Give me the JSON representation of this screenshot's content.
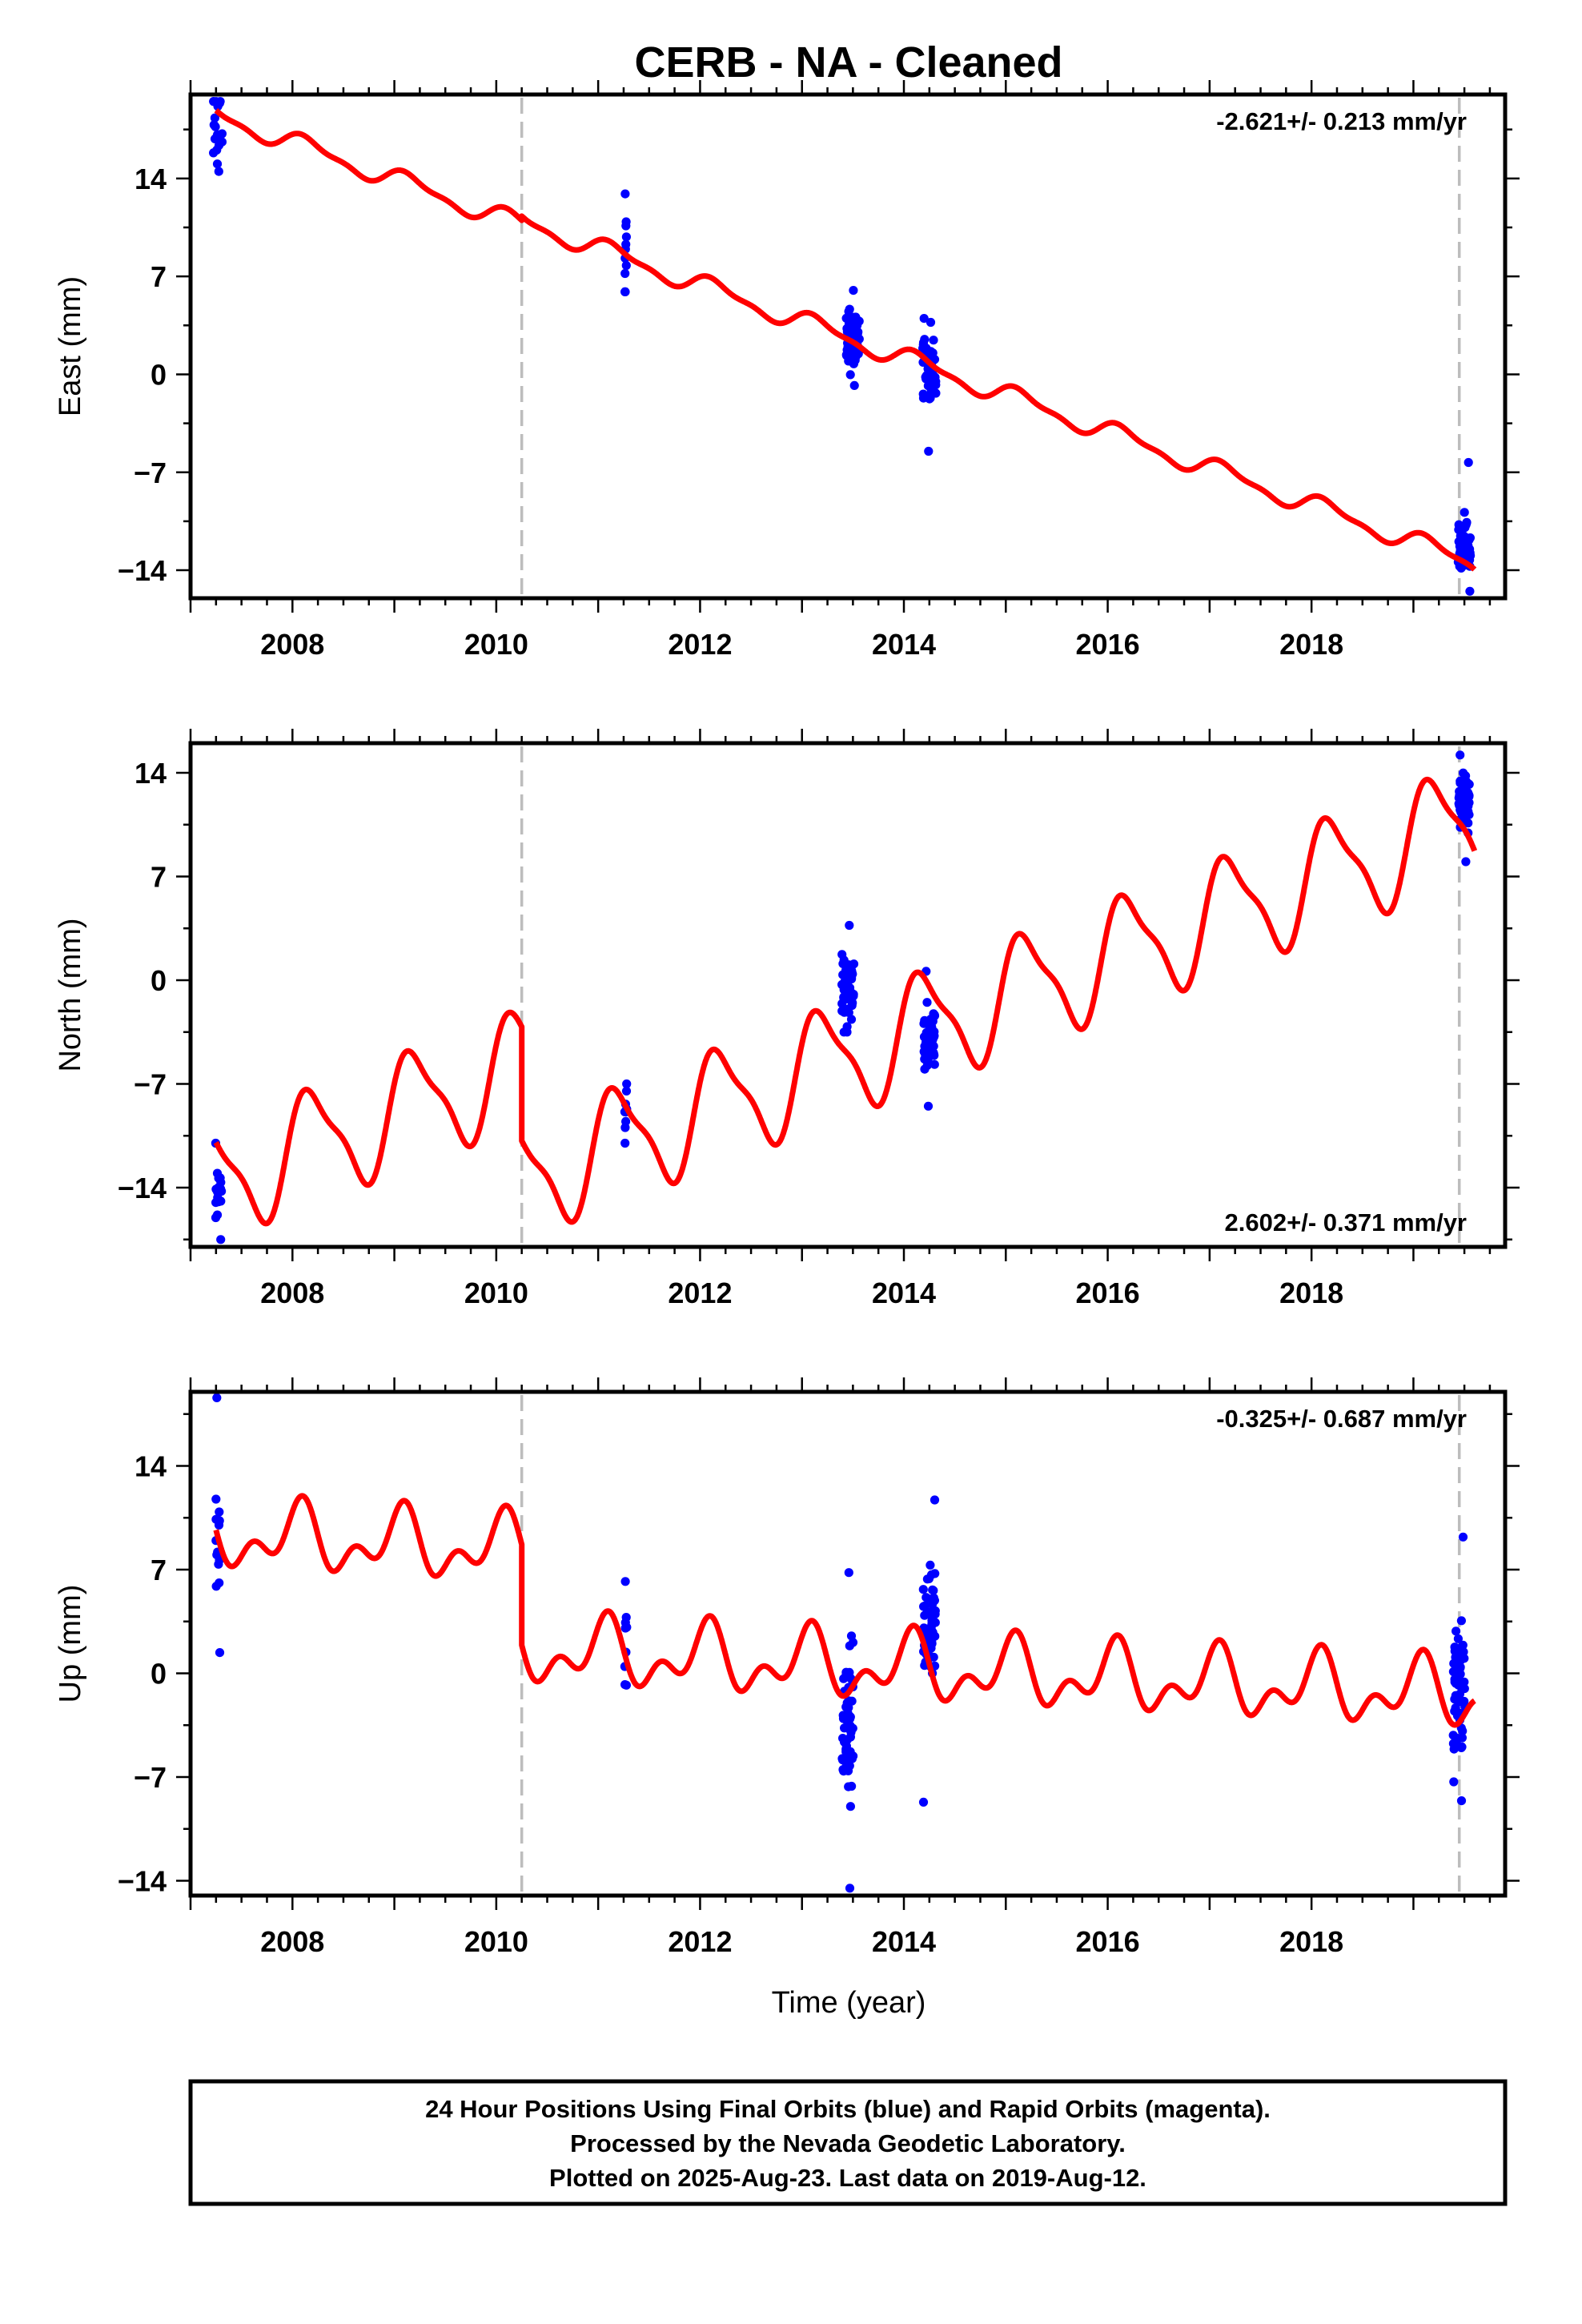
{
  "title": "CERB  - NA - Cleaned",
  "xlabel": "Time (year)",
  "colors": {
    "final_orbits": "#0000ff",
    "model": "#ff0000",
    "break": "#bdbdbd",
    "frame": "#000000"
  },
  "footer": {
    "line1": "24 Hour Positions Using Final Orbits (blue) and Rapid Orbits (magenta).",
    "line2": "Processed by the Nevada Geodetic Laboratory.",
    "line3": "Plotted on 2025-Aug-23. Last data on 2019-Aug-12."
  },
  "chart_data": [
    {
      "type": "scatter",
      "ylabel": "East (mm)",
      "rate": "-2.621+/- 0.213 mm/yr",
      "rate_position": "top-right",
      "xlim": [
        2007.0,
        2019.9
      ],
      "ylim": [
        -16,
        20
      ],
      "xticks": [
        "2008",
        "2010",
        "2012",
        "2014",
        "2016",
        "2018"
      ],
      "yticks": [
        "14",
        "7",
        "0",
        "−7",
        "−14"
      ],
      "ytick_values": [
        14,
        7,
        0,
        -7,
        -14
      ],
      "breaks": [
        2010.25,
        2019.45
      ],
      "model": {
        "rate": -2.621,
        "intercept_2007": 19.2,
        "annual_amp": 0.65,
        "annual_phase": 0.6,
        "semiannual_amp": 0.25,
        "semiannual_phase": 1.0,
        "offsets": [
          {
            "year": 2010.25,
            "step": 0.3
          }
        ]
      },
      "clusters": [
        {
          "center": 2007.27,
          "width": 0.09,
          "center_value": 17.8,
          "spread": 1.9,
          "count": 18,
          "min": 14.5,
          "max": 19.5
        },
        {
          "center": 2011.27,
          "width": 0.02,
          "center_value": 9.5,
          "spread": 2.5,
          "count": 9,
          "min": 5.9,
          "max": 12.9
        },
        {
          "center": 2013.5,
          "width": 0.13,
          "center_value": 2.3,
          "spread": 1.6,
          "count": 60,
          "min": -0.8,
          "max": 6.0
        },
        {
          "center": 2014.25,
          "width": 0.13,
          "center_value": 0.1,
          "spread": 1.7,
          "count": 60,
          "min": -5.5,
          "max": 4.0
        },
        {
          "center": 2019.5,
          "width": 0.12,
          "center_value": -12.2,
          "spread": 1.4,
          "count": 55,
          "min": -15.5,
          "max": -6.3
        }
      ]
    },
    {
      "type": "scatter",
      "ylabel": "North (mm)",
      "rate": "2.602+/- 0.371 mm/yr",
      "rate_position": "bottom-right",
      "xlim": [
        2007.0,
        2019.9
      ],
      "ylim": [
        -18,
        16
      ],
      "xticks": [
        "2008",
        "2010",
        "2012",
        "2014",
        "2016",
        "2018"
      ],
      "yticks": [
        "14",
        "7",
        "0",
        "−7",
        "−14"
      ],
      "ytick_values": [
        14,
        7,
        0,
        -7,
        -14
      ],
      "breaks": [
        2010.25,
        2019.45
      ],
      "model": {
        "rate": 2.602,
        "intercept_2007": -14.2,
        "annual_amp": 3.6,
        "annual_phase": 0.35,
        "semiannual_amp": 1.0,
        "semiannual_phase": 0.9,
        "offsets": [
          {
            "year": 2010.25,
            "step": -7.7
          },
          {
            "year": 2019.45,
            "step": 0.0
          }
        ]
      },
      "clusters": [
        {
          "center": 2007.27,
          "width": 0.07,
          "center_value": -14.3,
          "spread": 1.6,
          "count": 15,
          "min": -17.5,
          "max": -11.0
        },
        {
          "center": 2011.27,
          "width": 0.02,
          "center_value": -8.8,
          "spread": 1.1,
          "count": 7,
          "min": -11.0,
          "max": -7.0
        },
        {
          "center": 2013.45,
          "width": 0.12,
          "center_value": -0.5,
          "spread": 1.7,
          "count": 55,
          "min": -3.5,
          "max": 3.7
        },
        {
          "center": 2014.25,
          "width": 0.11,
          "center_value": -4.0,
          "spread": 1.4,
          "count": 55,
          "min": -8.5,
          "max": 0.6
        },
        {
          "center": 2019.5,
          "width": 0.11,
          "center_value": 12.0,
          "spread": 1.4,
          "count": 55,
          "min": 8.0,
          "max": 15.2
        }
      ]
    },
    {
      "type": "scatter",
      "ylabel": "Up (mm)",
      "rate": "-0.325+/- 0.687 mm/yr",
      "rate_position": "top-right",
      "xlim": [
        2007.0,
        2019.9
      ],
      "ylim": [
        -15,
        19
      ],
      "xticks": [
        "2008",
        "2010",
        "2012",
        "2014",
        "2016",
        "2018"
      ],
      "yticks": [
        "14",
        "7",
        "0",
        "−7",
        "−14"
      ],
      "ytick_values": [
        14,
        7,
        0,
        -7,
        -14
      ],
      "breaks": [
        2010.25,
        2019.45
      ],
      "model": {
        "rate": -0.325,
        "intercept_2007": 9.4,
        "annual_amp": 1.7,
        "annual_phase": 1.2,
        "semiannual_amp": 1.3,
        "semiannual_phase": 0.2,
        "offsets": [
          {
            "year": 2010.25,
            "step": -6.8
          },
          {
            "year": 2019.45,
            "step": 0.0
          }
        ]
      },
      "clusters": [
        {
          "center": 2007.27,
          "width": 0.05,
          "center_value": 10.0,
          "spread": 3.5,
          "count": 14,
          "min": 1.4,
          "max": 18.6
        },
        {
          "center": 2011.27,
          "width": 0.02,
          "center_value": 2.2,
          "spread": 2.6,
          "count": 7,
          "min": -0.8,
          "max": 6.2
        },
        {
          "center": 2013.45,
          "width": 0.11,
          "center_value": -3.5,
          "spread": 3.6,
          "count": 60,
          "min": -14.5,
          "max": 6.8
        },
        {
          "center": 2014.25,
          "width": 0.12,
          "center_value": 3.5,
          "spread": 2.8,
          "count": 60,
          "min": -8.7,
          "max": 11.7
        },
        {
          "center": 2019.45,
          "width": 0.12,
          "center_value": -1.0,
          "spread": 3.4,
          "count": 60,
          "min": -8.6,
          "max": 9.2
        }
      ]
    }
  ]
}
